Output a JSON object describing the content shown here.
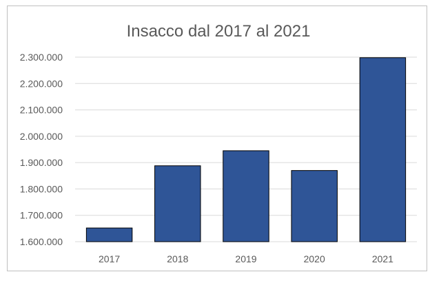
{
  "chart_data": {
    "type": "bar",
    "title": "Insacco dal 2017 al 2021",
    "categories": [
      "2017",
      "2018",
      "2019",
      "2020",
      "2021"
    ],
    "values": [
      1652000,
      1888000,
      1945000,
      1870000,
      2298000
    ],
    "ylim": [
      1600000,
      2300000
    ],
    "yticks": [
      1600000,
      1700000,
      1800000,
      1900000,
      2000000,
      2100000,
      2200000,
      2300000
    ],
    "ytick_labels": [
      "1.600.000",
      "1.700.000",
      "1.800.000",
      "1.900.000",
      "2.000.000",
      "2.100.000",
      "2.200.000",
      "2.300.000"
    ],
    "xlabel": "",
    "ylabel": "",
    "grid": true,
    "legend": "none",
    "bar_color": "#2F5597",
    "bar_edge_color": "#000000",
    "grid_color": "#d9d9d9"
  }
}
